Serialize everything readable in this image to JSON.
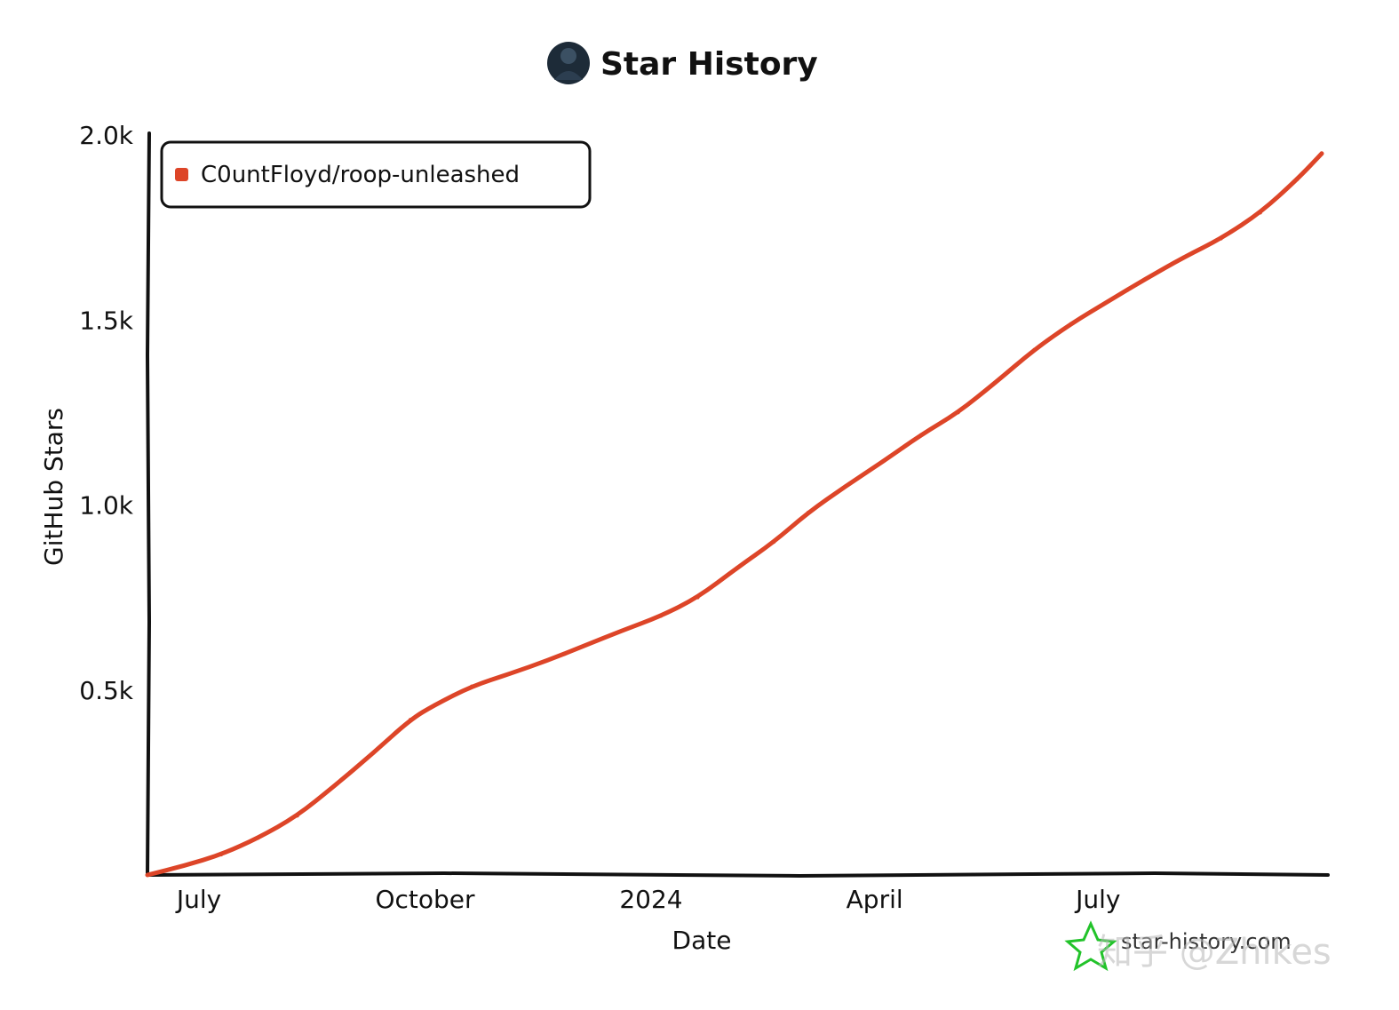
{
  "chart_data": {
    "type": "line",
    "title": "Star History",
    "xlabel": "Date",
    "ylabel": "GitHub Stars",
    "x_tick_labels": [
      "July",
      "October",
      "2024",
      "April",
      "July"
    ],
    "x_tick_dates": [
      "2023-07-01",
      "2023-10-01",
      "2024-01-01",
      "2024-04-01",
      "2024-07-01"
    ],
    "xlim": [
      "2023-06-10",
      "2024-09-30"
    ],
    "y_tick_labels": [
      "0.5k",
      "1.0k",
      "1.5k",
      "2.0k"
    ],
    "y_tick_values": [
      500,
      1000,
      1500,
      2000
    ],
    "ylim": [
      0,
      2000
    ],
    "legend": {
      "position": "top-left"
    },
    "grid": false,
    "series": [
      {
        "name": "C0untFloyd/roop-unleashed",
        "color": "#dd4528",
        "x": [
          "2023-06-10",
          "2023-06-25",
          "2023-07-10",
          "2023-07-25",
          "2023-08-10",
          "2023-08-25",
          "2023-09-10",
          "2023-09-25",
          "2023-10-05",
          "2023-10-20",
          "2023-11-05",
          "2023-11-20",
          "2023-12-05",
          "2023-12-20",
          "2024-01-05",
          "2024-01-20",
          "2024-02-05",
          "2024-02-20",
          "2024-03-05",
          "2024-03-20",
          "2024-04-05",
          "2024-04-20",
          "2024-05-05",
          "2024-05-20",
          "2024-06-05",
          "2024-06-20",
          "2024-07-05",
          "2024-07-20",
          "2024-08-05",
          "2024-08-20",
          "2024-09-05",
          "2024-09-20",
          "2024-09-30"
        ],
        "y": [
          0,
          25,
          55,
          100,
          160,
          240,
          330,
          420,
          460,
          510,
          545,
          580,
          620,
          660,
          700,
          750,
          830,
          900,
          980,
          1050,
          1120,
          1190,
          1250,
          1330,
          1420,
          1490,
          1550,
          1610,
          1670,
          1720,
          1790,
          1880,
          1950
        ]
      }
    ]
  },
  "watermark": {
    "text": "star-history.com",
    "overlay_text": "知乎 @Zhikes",
    "icon": "star-icon",
    "icon_color": "#22c32a"
  },
  "avatar": {
    "icon": "avatar-icon"
  }
}
